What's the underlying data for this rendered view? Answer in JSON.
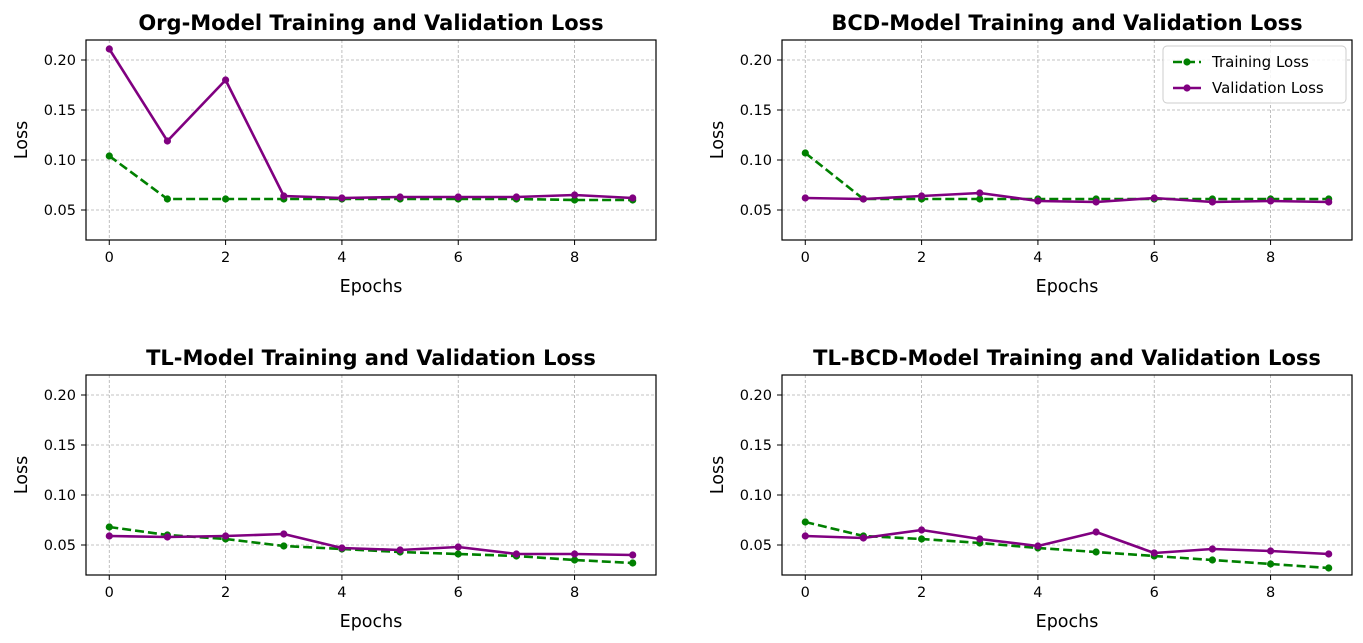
{
  "colors": {
    "training": "#008000",
    "validation": "#800080"
  },
  "chart_data": [
    {
      "type": "line",
      "title": "Org-Model Training and Validation Loss",
      "xlabel": "Epochs",
      "ylabel": "Loss",
      "xlim": [
        -0.4,
        9.4
      ],
      "ylim": [
        0.02,
        0.22
      ],
      "xticks": [
        "0",
        "2",
        "4",
        "6",
        "8"
      ],
      "yticks": [
        "0.05",
        "0.10",
        "0.15",
        "0.20"
      ],
      "grid": true,
      "legend": "none",
      "x": [
        0,
        1,
        2,
        3,
        4,
        5,
        6,
        7,
        8,
        9
      ],
      "series": [
        {
          "name": "Training Loss",
          "style": "dashed",
          "color": "#008000",
          "values": [
            0.104,
            0.061,
            0.061,
            0.061,
            0.061,
            0.061,
            0.061,
            0.061,
            0.06,
            0.06
          ]
        },
        {
          "name": "Validation Loss",
          "style": "solid",
          "color": "#800080",
          "values": [
            0.211,
            0.119,
            0.18,
            0.064,
            0.062,
            0.063,
            0.063,
            0.063,
            0.065,
            0.062
          ]
        }
      ]
    },
    {
      "type": "line",
      "title": "BCD-Model Training and Validation Loss",
      "xlabel": "Epochs",
      "ylabel": "Loss",
      "xlim": [
        -0.4,
        9.4
      ],
      "ylim": [
        0.02,
        0.22
      ],
      "xticks": [
        "0",
        "2",
        "4",
        "6",
        "8"
      ],
      "yticks": [
        "0.05",
        "0.10",
        "0.15",
        "0.20"
      ],
      "grid": true,
      "legend": "top-right",
      "x": [
        0,
        1,
        2,
        3,
        4,
        5,
        6,
        7,
        8,
        9
      ],
      "series": [
        {
          "name": "Training Loss",
          "style": "dashed",
          "color": "#008000",
          "values": [
            0.107,
            0.061,
            0.061,
            0.061,
            0.061,
            0.061,
            0.061,
            0.061,
            0.061,
            0.061
          ]
        },
        {
          "name": "Validation Loss",
          "style": "solid",
          "color": "#800080",
          "values": [
            0.062,
            0.061,
            0.064,
            0.067,
            0.059,
            0.058,
            0.062,
            0.058,
            0.059,
            0.058
          ]
        }
      ]
    },
    {
      "type": "line",
      "title": "TL-Model Training and Validation Loss",
      "xlabel": "Epochs",
      "ylabel": "Loss",
      "xlim": [
        -0.4,
        9.4
      ],
      "ylim": [
        0.02,
        0.22
      ],
      "xticks": [
        "0",
        "2",
        "4",
        "6",
        "8"
      ],
      "yticks": [
        "0.05",
        "0.10",
        "0.15",
        "0.20"
      ],
      "grid": true,
      "legend": "none",
      "x": [
        0,
        1,
        2,
        3,
        4,
        5,
        6,
        7,
        8,
        9
      ],
      "series": [
        {
          "name": "Training Loss",
          "style": "dashed",
          "color": "#008000",
          "values": [
            0.068,
            0.06,
            0.056,
            0.049,
            0.046,
            0.043,
            0.041,
            0.039,
            0.035,
            0.032
          ]
        },
        {
          "name": "Validation Loss",
          "style": "solid",
          "color": "#800080",
          "values": [
            0.059,
            0.058,
            0.059,
            0.061,
            0.047,
            0.045,
            0.048,
            0.041,
            0.041,
            0.04
          ]
        }
      ]
    },
    {
      "type": "line",
      "title": "TL-BCD-Model Training and Validation Loss",
      "xlabel": "Epochs",
      "ylabel": "Loss",
      "xlim": [
        -0.4,
        9.4
      ],
      "ylim": [
        0.02,
        0.22
      ],
      "xticks": [
        "0",
        "2",
        "4",
        "6",
        "8"
      ],
      "yticks": [
        "0.05",
        "0.10",
        "0.15",
        "0.20"
      ],
      "grid": true,
      "legend": "none",
      "x": [
        0,
        1,
        2,
        3,
        4,
        5,
        6,
        7,
        8,
        9
      ],
      "series": [
        {
          "name": "Training Loss",
          "style": "dashed",
          "color": "#008000",
          "values": [
            0.073,
            0.059,
            0.056,
            0.052,
            0.047,
            0.043,
            0.039,
            0.035,
            0.031,
            0.027
          ]
        },
        {
          "name": "Validation Loss",
          "style": "solid",
          "color": "#800080",
          "values": [
            0.059,
            0.057,
            0.065,
            0.056,
            0.049,
            0.063,
            0.042,
            0.046,
            0.044,
            0.041
          ]
        }
      ]
    }
  ]
}
